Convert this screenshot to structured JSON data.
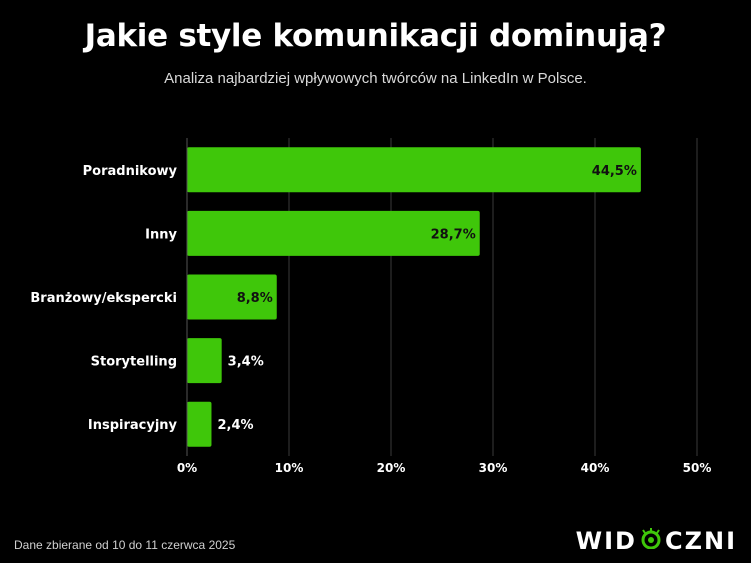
{
  "header": {
    "title": "Jakie style komunikacji dominują?",
    "subtitle": "Analiza najbardziej wpływowych twórców na LinkedIn w Polsce."
  },
  "footer": {
    "note": "Dane zbierane od 10 do 11 czerwca 2025",
    "logo_text": "WIDOCZNI",
    "logo_left": "WID",
    "logo_right": "CZNI"
  },
  "colors": {
    "bar": "#3fc70a",
    "background": "#000000",
    "grid": "#3a3a3a",
    "text": "#ffffff"
  },
  "chart_data": {
    "type": "bar",
    "orientation": "horizontal",
    "categories": [
      "Poradnikowy",
      "Inny",
      "Branżowy/ekspercki",
      "Storytelling",
      "Inspiracyjny"
    ],
    "values": [
      44.5,
      28.7,
      8.8,
      3.4,
      2.4
    ],
    "value_labels": [
      "44,5%",
      "28,7%",
      "8,8%",
      "3,4%",
      "2,4%"
    ],
    "xlim": [
      0,
      50
    ],
    "x_ticks": [
      0,
      10,
      20,
      30,
      40,
      50
    ],
    "x_tick_labels": [
      "0%",
      "10%",
      "20%",
      "30%",
      "40%",
      "50%"
    ],
    "grid": true
  }
}
